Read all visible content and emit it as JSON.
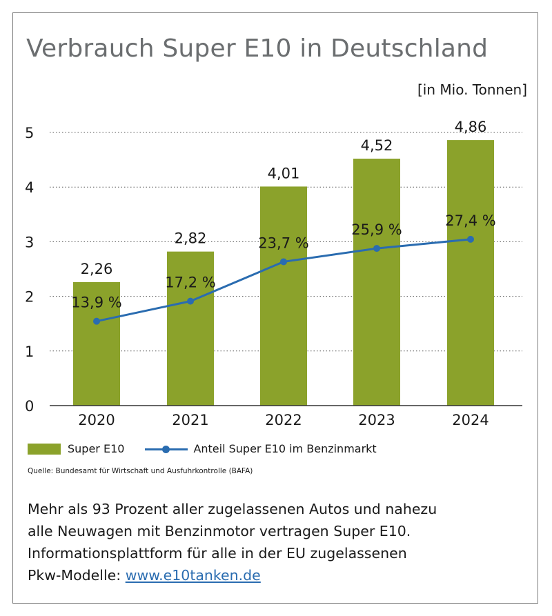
{
  "title": "Verbrauch Super E10 in Deutschland",
  "unit": "[in Mio. Tonnen]",
  "chart_data": {
    "type": "bar",
    "categories": [
      "2020",
      "2021",
      "2022",
      "2023",
      "2024"
    ],
    "series": [
      {
        "name": "Super E10",
        "type": "bar",
        "values": [
          2.26,
          2.82,
          4.01,
          4.52,
          4.86
        ],
        "labels": [
          "2,26",
          "2,82",
          "4,01",
          "4,52",
          "4,86"
        ],
        "color": "#8ba22b"
      },
      {
        "name": "Anteil Super E10 im Benzinmarkt",
        "type": "line",
        "values": [
          13.9,
          17.2,
          23.7,
          25.9,
          27.4
        ],
        "labels": [
          "13,9 %",
          "17,2 %",
          "23,7 %",
          "25,9 %",
          "27,4 %"
        ],
        "color": "#2a6cb0"
      }
    ],
    "ylim": [
      0,
      5
    ],
    "yticks": [
      "0",
      "1",
      "2",
      "3",
      "4",
      "5"
    ],
    "grid": true,
    "legend": "bottom"
  },
  "legend": {
    "bar_label": "Super E10",
    "line_label": "Anteil Super E10 im Benzinmarkt"
  },
  "source": "Quelle: Bundesamt für Wirtschaft und Ausfuhrkontrolle (BAFA)",
  "text": {
    "line1": "Mehr als 93 Prozent aller zugelassenen Autos und nahezu",
    "line2": "alle Neuwagen mit Benzinmotor vertragen Super E10.",
    "line3": "Informationsplattform für alle in der EU zugelassenen",
    "line4_prefix": "Pkw-Modelle: ",
    "link": "www.e10tanken.de"
  }
}
